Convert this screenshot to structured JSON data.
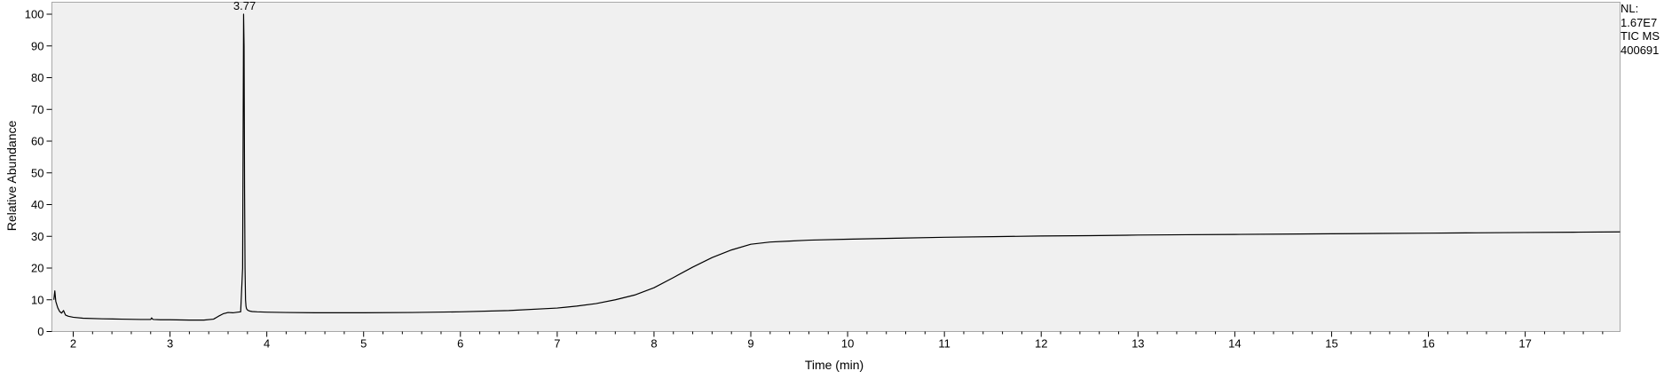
{
  "info": {
    "nl_label": "NL:",
    "nl_value": "1.67E7",
    "trace": "TIC  MS",
    "sample": "400691"
  },
  "chart_data": {
    "type": "line",
    "xlabel": "Time (min)",
    "ylabel": "Relative Abundance",
    "xlim": [
      1.78,
      17.98
    ],
    "ylim": [
      0,
      100
    ],
    "xticks": [
      2,
      3,
      4,
      5,
      6,
      7,
      8,
      9,
      10,
      11,
      12,
      13,
      14,
      15,
      16,
      17
    ],
    "yticks": [
      0,
      10,
      20,
      30,
      40,
      50,
      60,
      70,
      80,
      90,
      100
    ],
    "grid": false,
    "annotations": [
      {
        "x": 3.77,
        "y": 100,
        "text": "3.77"
      }
    ],
    "series": [
      {
        "x": [
          1.8,
          1.81,
          1.82,
          1.84,
          1.86,
          1.88,
          1.9,
          1.92,
          1.95,
          2.0,
          2.1,
          2.3,
          2.5,
          2.7,
          2.8,
          2.81,
          2.82,
          2.83,
          2.9,
          3.0,
          3.2,
          3.35,
          3.45,
          3.5,
          3.55,
          3.6,
          3.65,
          3.7,
          3.73,
          3.75,
          3.76,
          3.765,
          3.77,
          3.775,
          3.78,
          3.785,
          3.79,
          3.8,
          3.81,
          3.83,
          3.85,
          3.9,
          4.0,
          4.2,
          4.5,
          5.0,
          5.5,
          6.0,
          6.5,
          7.0,
          7.2,
          7.4,
          7.6,
          7.8,
          8.0,
          8.2,
          8.4,
          8.6,
          8.8,
          9.0,
          9.2,
          9.4,
          9.6,
          10.0,
          10.5,
          11.0,
          11.5,
          12.0,
          12.5,
          13.0,
          13.5,
          14.0,
          14.5,
          15.0,
          15.5,
          16.0,
          16.5,
          17.0,
          17.5,
          17.98
        ],
        "y": [
          10.0,
          12.8,
          9.5,
          7.5,
          6.3,
          5.8,
          6.6,
          5.2,
          4.8,
          4.5,
          4.2,
          4.0,
          3.9,
          3.8,
          3.8,
          4.3,
          3.9,
          3.8,
          3.7,
          3.7,
          3.6,
          3.6,
          3.9,
          4.8,
          5.6,
          6.0,
          5.9,
          6.1,
          6.2,
          20.0,
          100.0,
          90.0,
          45.0,
          20.0,
          10.0,
          8.0,
          7.2,
          6.8,
          6.6,
          6.4,
          6.3,
          6.2,
          6.1,
          6.0,
          5.9,
          5.9,
          6.0,
          6.2,
          6.6,
          7.4,
          8.0,
          8.8,
          10.0,
          11.5,
          13.8,
          17.0,
          20.3,
          23.3,
          25.7,
          27.5,
          28.2,
          28.5,
          28.8,
          29.1,
          29.4,
          29.7,
          29.9,
          30.1,
          30.2,
          30.4,
          30.5,
          30.6,
          30.7,
          30.8,
          30.9,
          31.0,
          31.1,
          31.2,
          31.3,
          31.4
        ]
      }
    ]
  }
}
